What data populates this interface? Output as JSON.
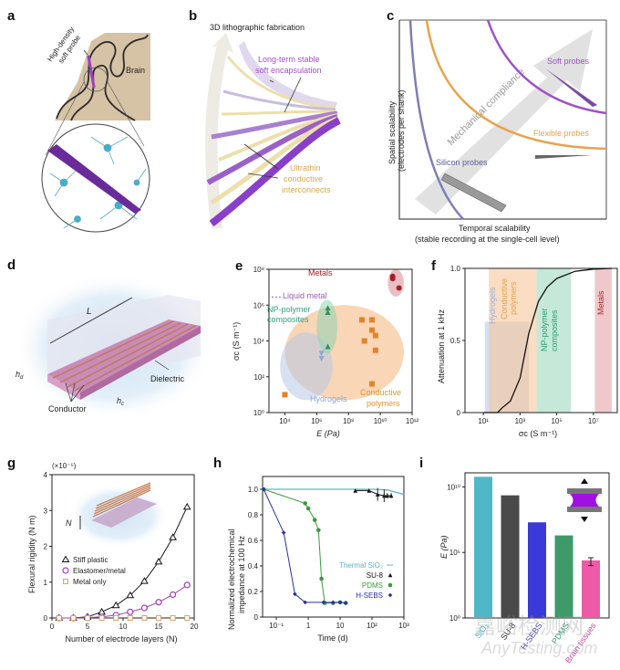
{
  "panels": {
    "a": {
      "label": "a",
      "probe_label_1": "High-density",
      "probe_label_2": "soft probe",
      "brain_label": "Brain"
    },
    "b": {
      "label": "b",
      "title": "3D lithographic fabrication",
      "encap_1": "Long-term stable",
      "encap_2": "soft encapsulation",
      "inter_1": "Ultrathin",
      "inter_2": "conductive",
      "inter_3": "interconnects"
    },
    "c": {
      "label": "c",
      "ylabel_1": "Spatial scalability",
      "ylabel_2": "(electrodes per shank)",
      "xlabel_1": "Temporal scalability",
      "xlabel_2": "(stable recording at the single-cell level)",
      "arrow_label": "Mechanical compliance",
      "soft": "Soft probes",
      "flexible": "Flexible probes",
      "silicon": "Silicon probes"
    },
    "d": {
      "label": "d",
      "length": "L",
      "hd": "h",
      "hd_sub": "d",
      "hc": "h",
      "hc_sub": "c",
      "dielectric": "Dielectric",
      "conductor": "Conductor"
    },
    "e": {
      "label": "e"
    },
    "f": {
      "label": "f"
    },
    "g": {
      "label": "g",
      "inset_n": "N"
    },
    "h": {
      "label": "h"
    },
    "i": {
      "label": "i"
    }
  },
  "watermark": {
    "line1": "嘉峪检测网",
    "line2": "AnyTesting.com"
  },
  "colors": {
    "purple": "#9b3fc0",
    "orange": "#e8a24a",
    "slate": "#7e7fb5",
    "metal": "#b0282e",
    "np": "#2e9f6f",
    "hydrogel": "#8fa9d6"
  },
  "chart_data": [
    {
      "id": "e",
      "type": "scatter",
      "xlabel": "E (Pa)",
      "ylabel": "σc (S m⁻¹)",
      "xscale": "log",
      "yscale": "log",
      "xlim": [
        1000.0,
        1000000000000.0
      ],
      "ylim": [
        1,
        100000000.0
      ],
      "xticks": [
        {
          "v": 10000.0,
          "label": "10⁴"
        },
        {
          "v": 1000000.0,
          "label": "10⁶"
        },
        {
          "v": 100000000.0,
          "label": "10⁸"
        },
        {
          "v": 10000000000.0,
          "label": "10¹⁰"
        },
        {
          "v": 1000000000000.0,
          "label": "10¹²"
        }
      ],
      "yticks": [
        {
          "v": 1,
          "label": "10⁰"
        },
        {
          "v": 100.0,
          "label": "10²"
        },
        {
          "v": 10000.0,
          "label": "10⁴"
        },
        {
          "v": 1000000.0,
          "label": "10⁶"
        },
        {
          "v": 100000000.0,
          "label": "10⁸"
        }
      ],
      "regions": [
        {
          "name": "Conductive polymers",
          "color": "#f2b57a",
          "x": [
            10000.0,
            300000000000.0
          ],
          "y": [
            5,
            1000000.0
          ]
        },
        {
          "name": "Hydrogels",
          "color": "#b8c8e6",
          "x": [
            5000.0,
            10000000.0
          ],
          "y": [
            5,
            30000.0
          ]
        },
        {
          "name": "NP-polymer composites",
          "color": "#8fd3b5",
          "x": [
            1000000.0,
            20000000.0
          ],
          "y": [
            2000.0,
            2000000.0
          ]
        },
        {
          "name": "Metals",
          "color": "#d98a8f",
          "x": [
            30000000000.0,
            300000000000.0
          ],
          "y": [
            3000000.0,
            100000000.0
          ]
        }
      ],
      "series": [
        {
          "name": "Metals",
          "marker": "circle",
          "color": "#a3202a",
          "points": [
            [
              60000000000.0,
              40000000.0
            ],
            [
              60000000000.0,
              30000000.0
            ],
            [
              150000000000.0,
              9000000.0
            ]
          ]
        },
        {
          "name": "NP-polymer composites",
          "marker": "triangle-up",
          "color": "#2e8f5f",
          "points": [
            [
              5000000.0,
              700000.0
            ],
            [
              5000000.0,
              400000.0
            ],
            [
              5000000.0,
              5000.0
            ]
          ]
        },
        {
          "name": "Hydrogels",
          "marker": "triangle-down",
          "color": "#8ea6d2",
          "points": [
            [
              2000000.0,
              2000.0
            ],
            [
              2000000.0,
              1000.0
            ]
          ]
        },
        {
          "name": "Conductive polymers",
          "marker": "square",
          "color": "#e3832a",
          "points": [
            [
              700000000.0,
              150000.0
            ],
            [
              3000000000.0,
              150000.0
            ],
            [
              3000000000.0,
              40000.0
            ],
            [
              5000000000.0,
              20000.0
            ],
            [
              1000000000.0,
              10000.0
            ],
            [
              5000000000.0,
              3000.0
            ],
            [
              3000000000.0,
              40
            ],
            [
              10000.0,
              10
            ]
          ]
        }
      ],
      "annotations": [
        {
          "text": "Metals",
          "color": "#a3202a"
        },
        {
          "text": "Liquid metal",
          "color": "#9a5fb0",
          "y": 2000000.0
        },
        {
          "text": "NP-polymer",
          "color": "#2e9f7f"
        },
        {
          "text": "composites",
          "color": "#2e9f7f"
        },
        {
          "text": "Hydrogels",
          "color": "#8ea6d2"
        },
        {
          "text": "Conductive",
          "color": "#e3932a"
        },
        {
          "text": "polymers",
          "color": "#e3932a"
        }
      ]
    },
    {
      "id": "f",
      "type": "line",
      "xlabel": "σc (S m⁻¹)",
      "ylabel": "Attenuation at 1 kHz",
      "xscale": "log",
      "xlim": [
        1,
        200000000.0
      ],
      "ylim": [
        0,
        1
      ],
      "xticks": [
        {
          "v": 10.0,
          "label": "10¹"
        },
        {
          "v": 1000.0,
          "label": "10³"
        },
        {
          "v": 100000.0,
          "label": "10⁵"
        },
        {
          "v": 10000000.0,
          "label": "10⁷"
        }
      ],
      "yticks": [
        {
          "v": 0,
          "label": "0"
        },
        {
          "v": 0.5,
          "label": "0.5"
        },
        {
          "v": 1,
          "label": "1.0"
        }
      ],
      "bands": [
        {
          "name": "Hydrogels",
          "color": "#b9c9e8",
          "x": [
            12.0,
            3000.0
          ],
          "ymax": 0.63
        },
        {
          "name": "Conductive polymers",
          "color": "#f6c79a",
          "x": [
            20.0,
            8000.0
          ],
          "ymax": 1
        },
        {
          "name": "NP-polymer composites",
          "color": "#9fd9bf",
          "x": [
            8000.0,
            600000.0
          ],
          "ymax": 1
        },
        {
          "name": "Metals",
          "color": "#e3a3a8",
          "x": [
            12000000.0,
            100000000.0
          ],
          "ymax": 1
        }
      ],
      "band_labels": [
        {
          "lines": [
            "Hydrogels"
          ],
          "color": "#9bb0db"
        },
        {
          "lines": [
            "Conductive",
            "polymers"
          ],
          "color": "#e3a24a"
        },
        {
          "lines": [
            "NP-polymer",
            "composites"
          ],
          "color": "#2e9f6f"
        },
        {
          "lines": [
            "Metals"
          ],
          "color": "#b0282e"
        }
      ],
      "series": [
        {
          "color": "#111111",
          "x": [
            10.0,
            60.0,
            100.0,
            300.0,
            1000.0,
            3000.0,
            10000.0,
            30000.0,
            100000.0,
            1000000.0,
            10000000.0,
            100000000.0
          ],
          "y": [
            0,
            0,
            0.03,
            0.08,
            0.24,
            0.55,
            0.77,
            0.87,
            0.93,
            0.98,
            0.995,
            1.0
          ]
        }
      ]
    },
    {
      "id": "g",
      "type": "line",
      "xlabel": "Number of electrode layers (N)",
      "ylabel": "Flexural rigidity (N m)",
      "yunit_multiplier": "(×10⁻⁵)",
      "xlim": [
        0,
        20
      ],
      "ylim": [
        0,
        4
      ],
      "xticks": [
        {
          "v": 0,
          "label": "0"
        },
        {
          "v": 5,
          "label": "5"
        },
        {
          "v": 10,
          "label": "10"
        },
        {
          "v": 15,
          "label": "15"
        },
        {
          "v": 20,
          "label": "20"
        }
      ],
      "yticks": [
        {
          "v": 0,
          "label": "0"
        },
        {
          "v": 1,
          "label": "1"
        },
        {
          "v": 2,
          "label": "2"
        },
        {
          "v": 3,
          "label": "3"
        },
        {
          "v": 4,
          "label": "4"
        }
      ],
      "legend_position": "middle-left",
      "series": [
        {
          "name": "Stiff plastic",
          "marker": "triangle",
          "color": "#111111",
          "x": [
            1,
            3,
            5,
            7,
            9,
            11,
            13,
            15,
            17,
            19
          ],
          "y": [
            0,
            0,
            0.03,
            0.17,
            0.35,
            0.63,
            1.03,
            1.57,
            2.25,
            3.1
          ]
        },
        {
          "name": "Elastomer/metal",
          "marker": "circle",
          "color": "#a03fb0",
          "x": [
            1,
            3,
            5,
            7,
            9,
            11,
            13,
            15,
            17,
            19
          ],
          "y": [
            0,
            0,
            0.01,
            0.03,
            0.08,
            0.17,
            0.28,
            0.44,
            0.65,
            0.92
          ]
        },
        {
          "name": "Metal only",
          "marker": "square",
          "color": "#d9a46a",
          "x": [
            1,
            3,
            5,
            7,
            9,
            11,
            13,
            15,
            17,
            19
          ],
          "y": [
            0,
            0,
            0,
            0,
            0,
            0,
            0,
            0,
            0,
            0
          ]
        }
      ]
    },
    {
      "id": "h",
      "type": "line",
      "xlabel": "Time (d)",
      "ylabel_1": "Normalized electrochemical",
      "ylabel_2": "impedance at 100 Hz",
      "xscale": "log",
      "xlim": [
        0.037,
        1000
      ],
      "ylim": [
        0,
        1.1
      ],
      "xticks": [
        {
          "v": 0.1,
          "label": "10⁻¹"
        },
        {
          "v": 1,
          "label": "1"
        },
        {
          "v": 10,
          "label": "10"
        },
        {
          "v": 100,
          "label": "10²"
        },
        {
          "v": 1000,
          "label": "10³"
        }
      ],
      "yticks": [
        {
          "v": 0,
          "label": "0"
        },
        {
          "v": 0.2,
          "label": "0.2"
        },
        {
          "v": 0.4,
          "label": "0.4"
        },
        {
          "v": 0.6,
          "label": "0.6"
        },
        {
          "v": 0.8,
          "label": "0.8"
        },
        {
          "v": 1.0,
          "label": "1.0"
        }
      ],
      "legend_position": "bottom-right",
      "series": [
        {
          "name": "Thermal SiO₂",
          "marker": "none",
          "color": "#5fb3c4",
          "x": [
            0.037,
            10,
            100,
            300,
            1000
          ],
          "y": [
            1,
            1,
            1,
            0.995,
            0.96
          ]
        },
        {
          "name": "SU-8",
          "marker": "star",
          "color": "#111111",
          "x": [
            30,
            80,
            150,
            240,
            300,
            400
          ],
          "y": [
            0.99,
            0.99,
            0.96,
            0.95,
            0.95,
            0.95
          ],
          "err": [
            0,
            0,
            0.05,
            0.05,
            0.02,
            0.02
          ]
        },
        {
          "name": "PDMS",
          "marker": "circle",
          "color": "#3a9a3a",
          "x": [
            0.04,
            0.8,
            1,
            1.6,
            2.1,
            2.6,
            3.3,
            6,
            10,
            15
          ],
          "y": [
            1,
            0.89,
            0.85,
            0.76,
            0.68,
            0.3,
            0.11,
            0.11,
            0.115,
            0.11
          ]
        },
        {
          "name": "H-SEBS",
          "marker": "diamond",
          "color": "#2a2fa0",
          "x": [
            0.04,
            0.17,
            0.38,
            0.8,
            3,
            6,
            10,
            15
          ],
          "y": [
            1,
            0.66,
            0.18,
            0.115,
            0.115,
            0.115,
            0.115,
            0.11
          ]
        }
      ]
    },
    {
      "id": "i",
      "type": "bar",
      "ylabel": "E (Pa)",
      "yscale": "log",
      "ylim": [
        1,
        120000000000.0
      ],
      "yticks": [
        {
          "v": 1,
          "label": "10⁰"
        },
        {
          "v": 100000.0,
          "label": "10⁵"
        },
        {
          "v": 10000000000.0,
          "label": "10¹⁰"
        }
      ],
      "categories": [
        "SiO₂",
        "SU-8",
        "H-SEBS",
        "PDMS",
        "Brain tissues"
      ],
      "category_colors": [
        "#4fb8c8",
        "#4a4a4a",
        "#3a3ad8",
        "#3f9a6a",
        "#ee5aa8"
      ],
      "label_colors": [
        "#4fb8c8",
        "#333333",
        "#4a4ab0",
        "#3f9a6a",
        "#c04aa0"
      ],
      "values": [
        60000000000.0,
        2300000000.0,
        20000000.0,
        2000000.0,
        25000.0
      ],
      "errors": [
        null,
        null,
        null,
        null,
        [
          10000.0,
          40000.0
        ]
      ]
    }
  ]
}
